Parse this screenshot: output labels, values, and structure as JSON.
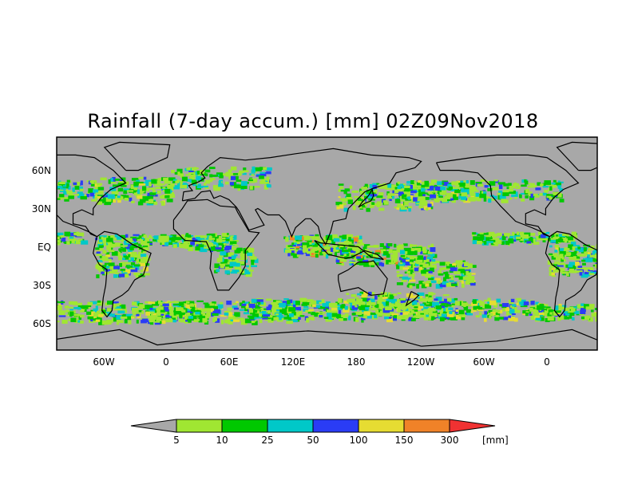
{
  "title": "Rainfall (7-day accum.) [mm] 02Z09Nov2018",
  "lat_labels": [
    "60N",
    "30N",
    "EQ",
    "30S",
    "60S"
  ],
  "lon_labels": [
    "60W",
    "0",
    "60E",
    "120E",
    "180",
    "120W",
    "60W",
    "0"
  ],
  "colorbar": {
    "unit": "[mm]",
    "ticks": [
      "5",
      "10",
      "25",
      "50",
      "100",
      "150",
      "300"
    ],
    "colors": [
      "#a8a8a8",
      "#a0e632",
      "#00c800",
      "#00c8c8",
      "#2a3cf5",
      "#e6dc32",
      "#f08228",
      "#f03232"
    ]
  },
  "colors": {
    "ocean_no_rain": "#a8a8a8",
    "coastline": "#000000"
  }
}
